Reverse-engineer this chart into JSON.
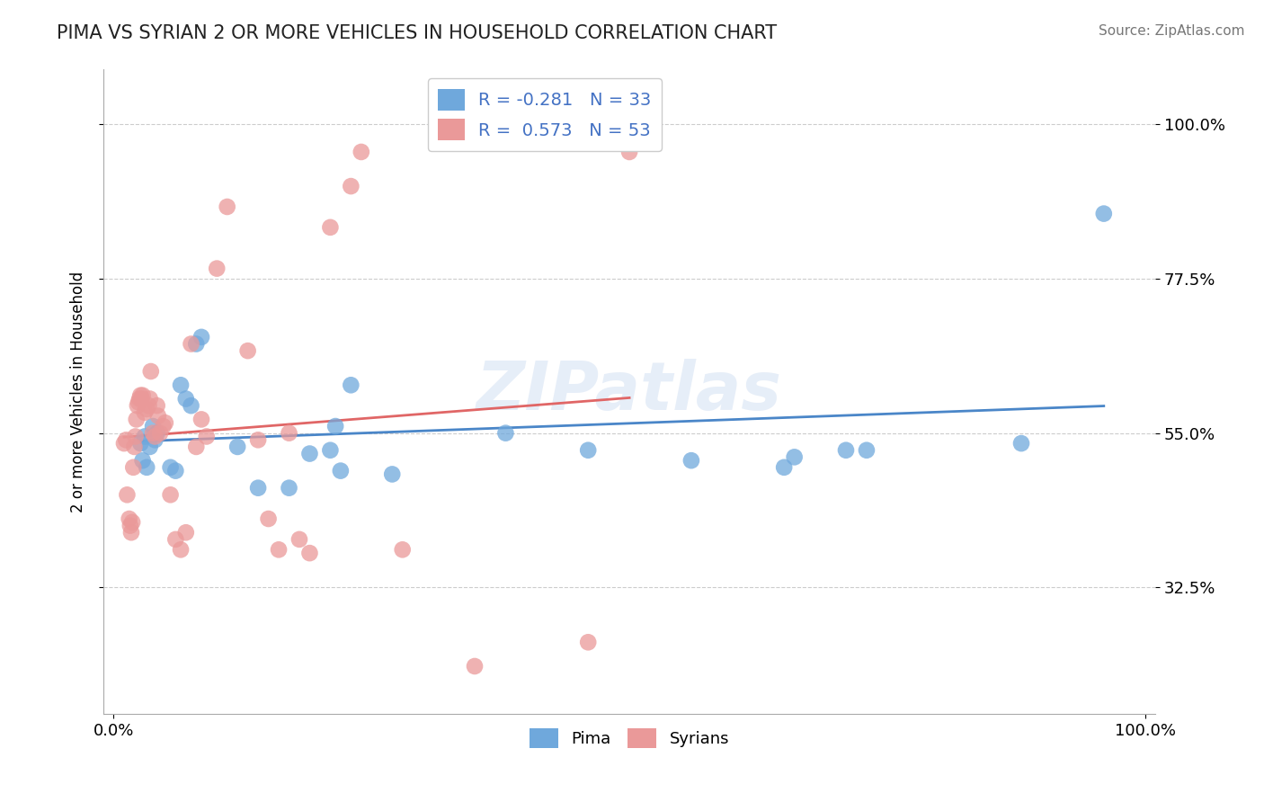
{
  "title": "PIMA VS SYRIAN 2 OR MORE VEHICLES IN HOUSEHOLD CORRELATION CHART",
  "source_text": "Source: ZipAtlas.com",
  "ylabel": "2 or more Vehicles in Household",
  "xlim": [
    0.0,
    1.0
  ],
  "ytick_labels": [
    "32.5%",
    "55.0%",
    "77.5%",
    "100.0%"
  ],
  "ytick_values": [
    0.325,
    0.55,
    0.775,
    1.0
  ],
  "pima_R": -0.281,
  "pima_N": 33,
  "syrian_R": 0.573,
  "syrian_N": 53,
  "pima_color": "#6fa8dc",
  "syrian_color": "#ea9999",
  "pima_line_color": "#4a86c8",
  "syrian_line_color": "#e06666",
  "watermark": "ZIPatlas",
  "background_color": "#ffffff",
  "grid_color": "#cccccc",
  "pima_x": [
    0.026,
    0.028,
    0.03,
    0.032,
    0.035,
    0.038,
    0.04,
    0.042,
    0.055,
    0.06,
    0.065,
    0.07,
    0.075,
    0.08,
    0.085,
    0.12,
    0.14,
    0.17,
    0.19,
    0.21,
    0.215,
    0.22,
    0.23,
    0.27,
    0.38,
    0.46,
    0.56,
    0.65,
    0.66,
    0.71,
    0.73,
    0.88,
    0.96
  ],
  "pima_y": [
    0.535,
    0.51,
    0.545,
    0.5,
    0.53,
    0.56,
    0.54,
    0.55,
    0.5,
    0.495,
    0.62,
    0.6,
    0.59,
    0.68,
    0.69,
    0.53,
    0.47,
    0.47,
    0.52,
    0.525,
    0.56,
    0.495,
    0.62,
    0.49,
    0.55,
    0.525,
    0.51,
    0.5,
    0.515,
    0.525,
    0.525,
    0.535,
    0.87
  ],
  "syrian_x": [
    0.01,
    0.012,
    0.013,
    0.015,
    0.016,
    0.017,
    0.018,
    0.019,
    0.02,
    0.021,
    0.022,
    0.023,
    0.024,
    0.025,
    0.026,
    0.027,
    0.028,
    0.03,
    0.032,
    0.034,
    0.035,
    0.036,
    0.038,
    0.04,
    0.042,
    0.043,
    0.045,
    0.048,
    0.05,
    0.055,
    0.06,
    0.065,
    0.07,
    0.075,
    0.08,
    0.085,
    0.09,
    0.1,
    0.11,
    0.13,
    0.14,
    0.15,
    0.16,
    0.17,
    0.18,
    0.19,
    0.21,
    0.23,
    0.24,
    0.28,
    0.35,
    0.46,
    0.5
  ],
  "syrian_y": [
    0.535,
    0.54,
    0.46,
    0.425,
    0.415,
    0.405,
    0.42,
    0.5,
    0.53,
    0.545,
    0.57,
    0.59,
    0.595,
    0.6,
    0.605,
    0.6,
    0.605,
    0.58,
    0.585,
    0.59,
    0.6,
    0.64,
    0.55,
    0.545,
    0.59,
    0.575,
    0.55,
    0.56,
    0.565,
    0.46,
    0.395,
    0.38,
    0.405,
    0.68,
    0.53,
    0.57,
    0.545,
    0.79,
    0.88,
    0.67,
    0.54,
    0.425,
    0.38,
    0.55,
    0.395,
    0.375,
    0.85,
    0.91,
    0.96,
    0.38,
    0.21,
    0.245,
    0.96
  ],
  "pima_legend": "Pima",
  "syrian_legend": "Syrians"
}
